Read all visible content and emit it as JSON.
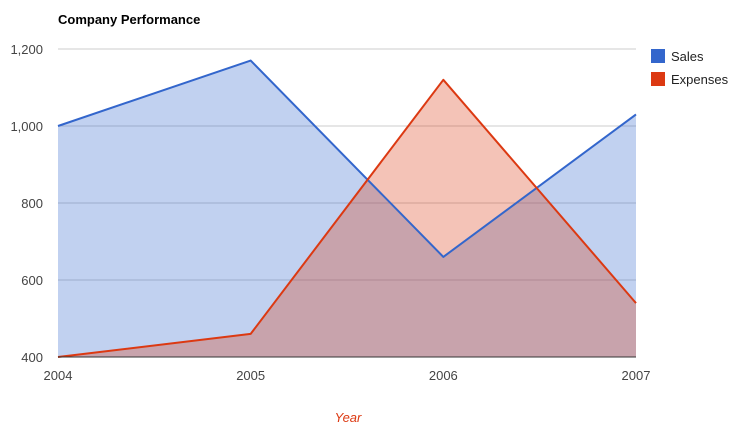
{
  "chart_data": {
    "type": "area",
    "title": "Company Performance",
    "xlabel": "Year",
    "ylabel": "",
    "x": [
      "2004",
      "2005",
      "2006",
      "2007"
    ],
    "ylim": [
      400,
      1200
    ],
    "yticks": [
      400,
      600,
      800,
      1000,
      1200
    ],
    "ytick_labels": [
      "400",
      "600",
      "800",
      "1,000",
      "1,200"
    ],
    "grid": true,
    "legend_position": "right",
    "series": [
      {
        "name": "Sales",
        "values": [
          1000,
          1170,
          660,
          1030
        ],
        "color": "#3366cc"
      },
      {
        "name": "Expenses",
        "values": [
          400,
          460,
          1120,
          540
        ],
        "color": "#dc3912"
      }
    ],
    "xlabel_color": "#dc3912"
  }
}
